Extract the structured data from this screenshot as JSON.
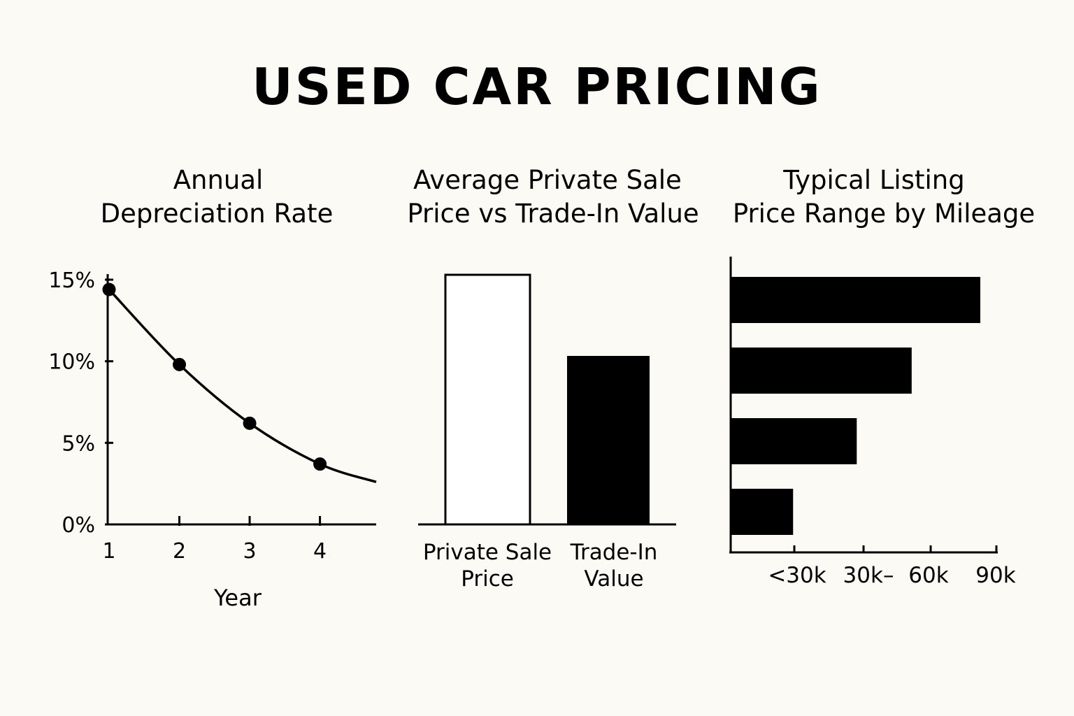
{
  "title": "USED CAR PRICING",
  "colors": {
    "background": "#fbfaf5",
    "ink": "#000000",
    "hollow": "#ffffff"
  },
  "chart_data": [
    {
      "type": "line",
      "title_lines": [
        "Annual",
        "Depreciation Rate"
      ],
      "xlabel": "Year",
      "x": [
        1,
        2,
        3,
        4
      ],
      "x_tick_labels": [
        "1",
        "2",
        "3",
        "4"
      ],
      "y": [
        14.4,
        9.8,
        6.2,
        3.7
      ],
      "trend_end": {
        "x": 4.8,
        "y": 2.6
      },
      "xlim": [
        1,
        4.8
      ],
      "ylim": [
        0,
        15
      ],
      "y_ticks": [
        0,
        5,
        10,
        15
      ],
      "y_tick_labels": [
        "0%",
        "5%",
        "10%",
        "15%"
      ]
    },
    {
      "type": "bar",
      "title_lines": [
        "Average Private Sale",
        "Price vs Trade-In Value"
      ],
      "categories": [
        {
          "lines": [
            "Private Sale",
            "Price"
          ],
          "fill": "hollow"
        },
        {
          "lines": [
            "Trade-In",
            "Value"
          ],
          "fill": "solid"
        }
      ],
      "values": [
        100,
        67.5
      ],
      "ylim": [
        0,
        100
      ]
    },
    {
      "type": "bar",
      "orientation": "horizontal",
      "title_lines": [
        "Typical Listing",
        "Price Range by Mileage"
      ],
      "values": [
        100,
        72.5,
        50.5,
        25
      ],
      "xlim": [
        0,
        107
      ],
      "x_tick_labels": [
        "<30k",
        "30k–",
        "60k",
        "90k"
      ]
    }
  ]
}
